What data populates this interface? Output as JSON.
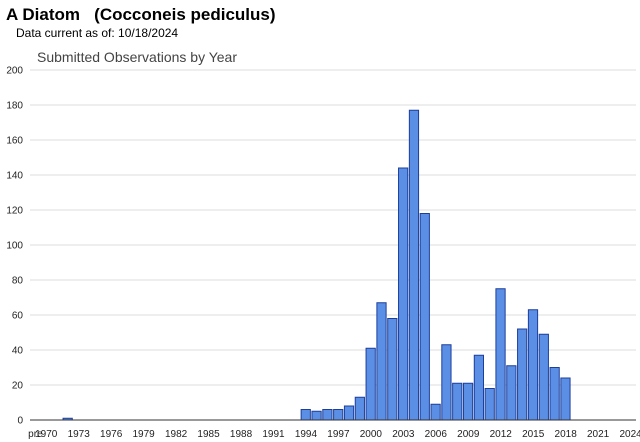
{
  "header": {
    "title": "A Diatom   (Cocconeis pediculus)",
    "data_current": "Data current as of: 10/18/2024"
  },
  "colors": {
    "bar_fill": "#5b8fe6",
    "bar_stroke": "#1d3f9a",
    "grid": "#dddddd",
    "axis": "#333333"
  },
  "chart_data": {
    "type": "bar",
    "title": "Submitted Observations by Year",
    "xlabel": "",
    "ylabel": "",
    "ylim": [
      0,
      200
    ],
    "yticks": [
      0,
      20,
      40,
      60,
      80,
      100,
      120,
      140,
      160,
      180,
      200
    ],
    "grid": true,
    "categories": [
      "pre",
      "1970",
      "1971",
      "1972",
      "1973",
      "1974",
      "1975",
      "1976",
      "1977",
      "1978",
      "1979",
      "1980",
      "1981",
      "1982",
      "1983",
      "1984",
      "1985",
      "1986",
      "1987",
      "1988",
      "1989",
      "1990",
      "1991",
      "1992",
      "1993",
      "1994",
      "1995",
      "1996",
      "1997",
      "1998",
      "1999",
      "2000",
      "2001",
      "2002",
      "2003",
      "2004",
      "2005",
      "2006",
      "2007",
      "2008",
      "2009",
      "2010",
      "2011",
      "2012",
      "2013",
      "2014",
      "2015",
      "2016",
      "2017",
      "2018",
      "2019",
      "2020",
      "2021",
      "2022",
      "2023",
      "2024"
    ],
    "tick_labels": [
      "pre",
      "1970",
      "1973",
      "1976",
      "1979",
      "1982",
      "1985",
      "1988",
      "1991",
      "1994",
      "1997",
      "2000",
      "2003",
      "2006",
      "2009",
      "2012",
      "2015",
      "2018",
      "2021",
      "2024"
    ],
    "values": [
      0,
      0,
      0,
      1,
      0,
      0,
      0,
      0,
      0,
      0,
      0,
      0,
      0,
      0,
      0,
      0,
      0,
      0,
      0,
      0,
      0,
      0,
      0,
      0,
      0,
      6,
      5,
      6,
      6,
      8,
      13,
      41,
      67,
      58,
      144,
      177,
      118,
      9,
      43,
      21,
      21,
      37,
      18,
      75,
      31,
      52,
      63,
      49,
      30,
      24,
      0,
      0,
      0,
      0,
      0,
      0
    ]
  }
}
